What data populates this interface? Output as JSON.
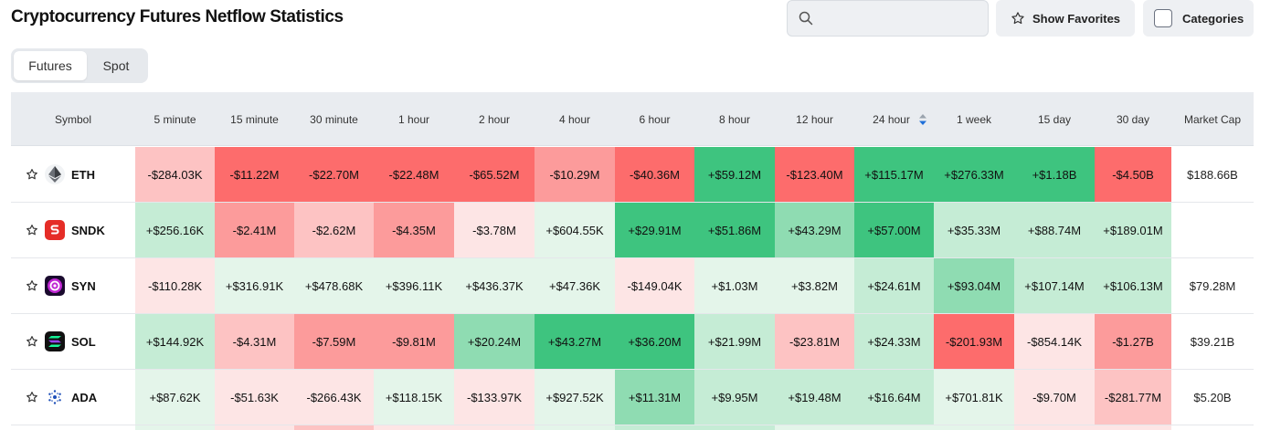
{
  "header": {
    "title": "Cryptocurrency Futures Netflow Statistics",
    "search_placeholder": "",
    "show_favorites_label": "Show Favorites",
    "categories_label": "Categories"
  },
  "tabs": [
    {
      "label": "Futures",
      "active": true
    },
    {
      "label": "Spot",
      "active": false
    }
  ],
  "columns": [
    "Symbol",
    "5 minute",
    "15 minute",
    "30 minute",
    "1 hour",
    "2 hour",
    "4 hour",
    "6 hour",
    "8 hour",
    "12 hour",
    "24 hour",
    "1 week",
    "15 day",
    "30 day",
    "Market Cap"
  ],
  "sorted_column": "24 hour",
  "colors": {
    "pos_strong": "#3ec47f",
    "pos_mid": "#8fdcb2",
    "pos_light": "#c5ecd5",
    "pos_faint": "#e4f5ea",
    "neg_strong": "#fd6c6c",
    "neg_mid": "#fc9b9b",
    "neg_light": "#fdc3c3",
    "neg_faint": "#fde5e5"
  },
  "rows": [
    {
      "symbol": "ETH",
      "icon": "eth-icon",
      "values": [
        "-$284.03K",
        "-$11.22M",
        "-$22.70M",
        "-$22.48M",
        "-$65.52M",
        "-$10.29M",
        "-$40.36M",
        "+$59.12M",
        "-$123.40M",
        "+$115.17M",
        "+$276.33M",
        "+$1.18B",
        "-$4.50B"
      ],
      "shades": [
        "neg_light",
        "neg_strong",
        "neg_strong",
        "neg_strong",
        "neg_strong",
        "neg_mid",
        "neg_strong",
        "pos_strong",
        "neg_strong",
        "pos_strong",
        "pos_strong",
        "pos_strong",
        "neg_strong"
      ],
      "market_cap": "$188.66B"
    },
    {
      "symbol": "SNDK",
      "icon": "sndk-icon",
      "values": [
        "+$256.16K",
        "-$2.41M",
        "-$2.62M",
        "-$4.35M",
        "-$3.78M",
        "+$604.55K",
        "+$29.91M",
        "+$51.86M",
        "+$43.29M",
        "+$57.00M",
        "+$35.33M",
        "+$88.74M",
        "+$189.01M"
      ],
      "shades": [
        "pos_light",
        "neg_mid",
        "neg_light",
        "neg_mid",
        "neg_faint",
        "pos_faint",
        "pos_strong",
        "pos_strong",
        "pos_mid",
        "pos_strong",
        "pos_light",
        "pos_light",
        "pos_light"
      ],
      "market_cap": ""
    },
    {
      "symbol": "SYN",
      "icon": "syn-icon",
      "values": [
        "-$110.28K",
        "+$316.91K",
        "+$478.68K",
        "+$396.11K",
        "+$436.37K",
        "+$47.36K",
        "-$149.04K",
        "+$1.03M",
        "+$3.82M",
        "+$24.61M",
        "+$93.04M",
        "+$107.14M",
        "+$106.13M"
      ],
      "shades": [
        "neg_faint",
        "pos_faint",
        "pos_faint",
        "pos_faint",
        "pos_faint",
        "pos_faint",
        "neg_faint",
        "pos_faint",
        "pos_faint",
        "pos_light",
        "pos_mid",
        "pos_light",
        "pos_light"
      ],
      "market_cap": "$79.28M"
    },
    {
      "symbol": "SOL",
      "icon": "sol-icon",
      "values": [
        "+$144.92K",
        "-$4.31M",
        "-$7.59M",
        "-$9.81M",
        "+$20.24M",
        "+$43.27M",
        "+$36.20M",
        "+$21.99M",
        "-$23.81M",
        "+$24.33M",
        "-$201.93M",
        "-$854.14K",
        "-$1.27B"
      ],
      "shades": [
        "pos_light",
        "neg_light",
        "neg_mid",
        "neg_mid",
        "pos_mid",
        "pos_strong",
        "pos_strong",
        "pos_light",
        "neg_light",
        "pos_light",
        "neg_strong",
        "neg_faint",
        "neg_mid"
      ],
      "market_cap": "$39.21B"
    },
    {
      "symbol": "ADA",
      "icon": "ada-icon",
      "values": [
        "+$87.62K",
        "-$51.63K",
        "-$266.43K",
        "+$118.15K",
        "-$133.97K",
        "+$927.52K",
        "+$11.31M",
        "+$9.95M",
        "+$19.48M",
        "+$16.64M",
        "+$701.81K",
        "-$9.70M",
        "-$281.77M"
      ],
      "shades": [
        "pos_faint",
        "neg_faint",
        "neg_faint",
        "pos_faint",
        "neg_faint",
        "pos_faint",
        "pos_mid",
        "pos_light",
        "pos_light",
        "pos_light",
        "pos_faint",
        "neg_faint",
        "neg_light"
      ],
      "market_cap": "$5.20B"
    }
  ]
}
